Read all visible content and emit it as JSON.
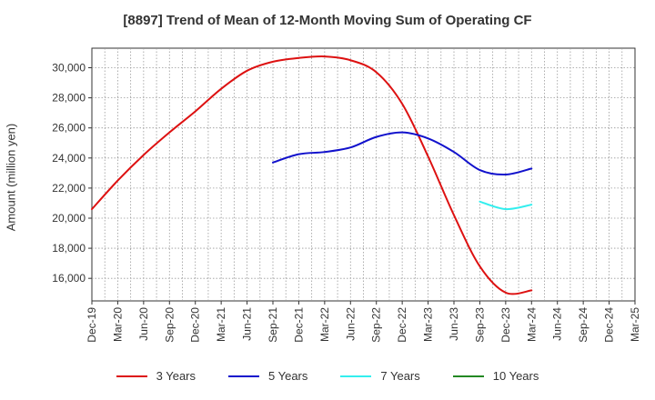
{
  "chart_data": {
    "type": "line",
    "title": "[8897]  Trend of Mean of 12-Month Moving Sum of Operating CF",
    "xlabel": "",
    "ylabel": "Amount (million yen)",
    "ylim": [
      14500,
      31300
    ],
    "yticks": [
      16000,
      18000,
      20000,
      22000,
      24000,
      26000,
      28000,
      30000
    ],
    "ytick_labels": [
      "16,000",
      "18,000",
      "20,000",
      "22,000",
      "24,000",
      "26,000",
      "28,000",
      "30,000"
    ],
    "xticks": [
      "Dec-19",
      "Mar-20",
      "Jun-20",
      "Sep-20",
      "Dec-20",
      "Mar-21",
      "Jun-21",
      "Sep-21",
      "Dec-21",
      "Mar-22",
      "Jun-22",
      "Sep-22",
      "Dec-22",
      "Mar-23",
      "Jun-23",
      "Sep-23",
      "Dec-23",
      "Mar-24",
      "Jun-24",
      "Sep-24",
      "Dec-24",
      "Mar-25"
    ],
    "grid": true,
    "legend_position": "bottom",
    "series": [
      {
        "name": "3 Years",
        "color": "#dd1111",
        "values": [
          20600,
          22500,
          24200,
          25700,
          27100,
          28600,
          29800,
          30400,
          30650,
          30750,
          30500,
          29700,
          27600,
          24100,
          20200,
          16800,
          15050,
          15200
        ]
      },
      {
        "name": "5 Years",
        "color": "#1111cc",
        "values": [
          null,
          null,
          null,
          null,
          null,
          null,
          null,
          23700,
          24250,
          24400,
          24700,
          25400,
          25700,
          25300,
          24400,
          23200,
          22900,
          23300
        ]
      },
      {
        "name": "7 Years",
        "color": "#33eeee",
        "values": [
          null,
          null,
          null,
          null,
          null,
          null,
          null,
          null,
          null,
          null,
          null,
          null,
          null,
          null,
          null,
          21100,
          20600,
          20900
        ]
      },
      {
        "name": "10 Years",
        "color": "#228822",
        "values": []
      }
    ]
  }
}
